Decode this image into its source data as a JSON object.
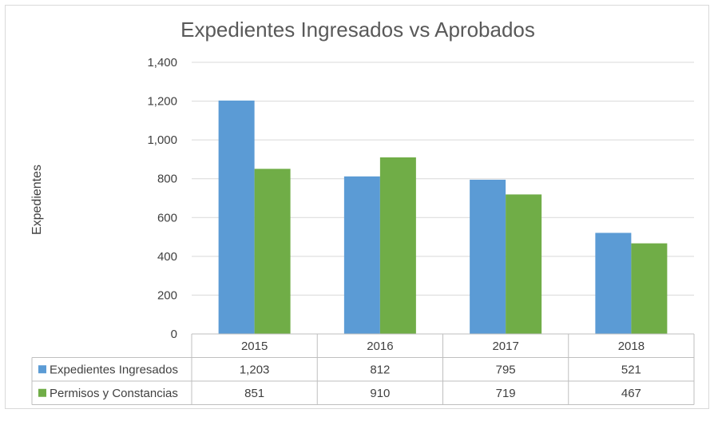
{
  "chart_data": {
    "type": "bar",
    "title": "Expedientes Ingresados vs Aprobados",
    "ylabel": "Expedientes",
    "xlabel": "",
    "ylim": [
      0,
      1400
    ],
    "yticks": [
      0,
      200,
      400,
      600,
      800,
      1000,
      1200,
      1400
    ],
    "ytick_labels": [
      "0",
      "200",
      "400",
      "600",
      "800",
      "1,000",
      "1,200",
      "1,400"
    ],
    "categories": [
      "2015",
      "2016",
      "2017",
      "2018"
    ],
    "gridlines": true,
    "legend_position": "data-table",
    "series": [
      {
        "name": "Expedientes Ingresados",
        "color": "#5b9bd5",
        "values": [
          1203,
          812,
          795,
          521
        ],
        "labels": [
          "1,203",
          "812",
          "795",
          "521"
        ]
      },
      {
        "name": "Permisos y Constancias",
        "color": "#70ad47",
        "values": [
          851,
          910,
          719,
          467
        ],
        "labels": [
          "851",
          "910",
          "719",
          "467"
        ]
      }
    ]
  }
}
